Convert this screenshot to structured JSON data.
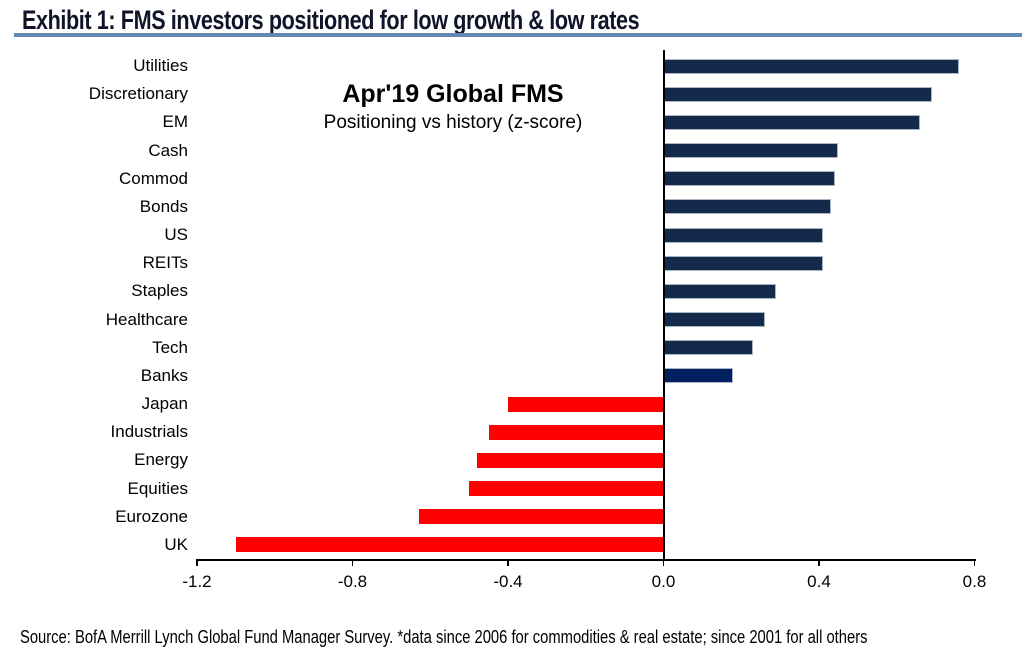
{
  "header": {
    "title": "Exhibit 1: FMS investors positioned for low growth & low rates"
  },
  "chart_data": {
    "type": "bar",
    "orientation": "horizontal",
    "title": "Apr'19 Global FMS",
    "subtitle": "Positioning vs history (z-score)",
    "categories": [
      "Utilities",
      "Discretionary",
      "EM",
      "Cash",
      "Commod",
      "Bonds",
      "US",
      "REITs",
      "Staples",
      "Healthcare",
      "Tech",
      "Banks",
      "Japan",
      "Industrials",
      "Energy",
      "Equities",
      "Eurozone",
      "UK"
    ],
    "values": [
      0.76,
      0.69,
      0.66,
      0.45,
      0.44,
      0.43,
      0.41,
      0.41,
      0.29,
      0.26,
      0.23,
      0.18,
      -0.4,
      -0.45,
      -0.48,
      -0.5,
      -0.63,
      -1.1
    ],
    "bar_colors": [
      "#132a4c",
      "#132a4c",
      "#132a4c",
      "#132a4c",
      "#132a4c",
      "#132a4c",
      "#132a4c",
      "#132a4c",
      "#132a4c",
      "#132a4c",
      "#132a4c",
      "#002060",
      "#ff0000",
      "#ff0000",
      "#ff0000",
      "#ff0000",
      "#ff0000",
      "#ff0000"
    ],
    "colors": {
      "positive_navy": "#132a4c",
      "banks_blue": "#002060",
      "negative_red": "#ff0000",
      "bar_outline": "#aab6c6",
      "title_rule_blue": "#6189b4",
      "axis_black": "#000000"
    },
    "xlim": [
      -1.2,
      0.8
    ],
    "xticks": [
      -1.2,
      -0.8,
      -0.4,
      0.0,
      0.4,
      0.8
    ],
    "xtick_labels": [
      "-1.2",
      "-0.8",
      "-0.4",
      "0.0",
      "0.4",
      "0.8"
    ],
    "grid": false,
    "legend": false
  },
  "footer": {
    "source": "Source:  BofA Merrill Lynch Global Fund Manager Survey. *data since 2006 for commodities & real estate; since 2001  for all others"
  }
}
